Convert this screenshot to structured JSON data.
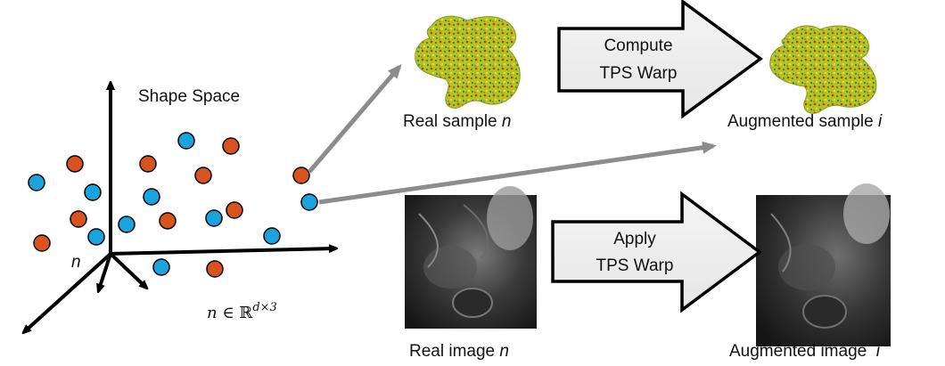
{
  "shape_space": {
    "title": "Shape Space",
    "axis_point_label": "n",
    "formula": {
      "var": "n",
      "in": " ∈ ",
      "set": "ℝ",
      "exp": "d×3"
    },
    "colors": {
      "blue": "#1aa3dd",
      "orange": "#d9531e"
    }
  },
  "top_row": {
    "real_label": {
      "text": "Real sample ",
      "var": "n"
    },
    "arrow_label": [
      "Compute",
      "TPS Warp"
    ],
    "augmented_label": {
      "text": "Augmented sample ",
      "var": "i"
    }
  },
  "bottom_row": {
    "real_label": {
      "text": "Real image ",
      "var": "n"
    },
    "arrow_label": [
      "Apply",
      "TPS Warp"
    ],
    "augmented_label": {
      "text": "Augmented image  ",
      "var": "i"
    }
  }
}
